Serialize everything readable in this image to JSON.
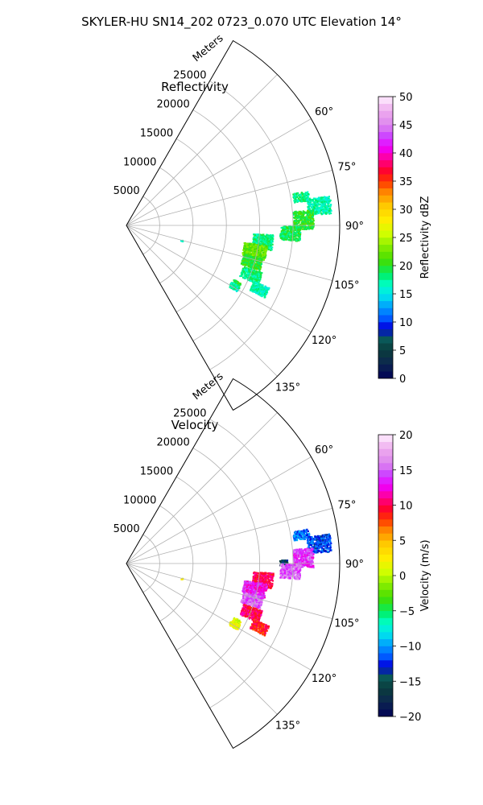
{
  "suptitle": "SKYLER-HU  SN14_202  0723_0.070 UTC Elevation 14°",
  "colors": {
    "grid": "#b0b0b0",
    "frame": "#000000"
  },
  "chart_data": [
    {
      "type": "heatmap",
      "projection": "polar-sector",
      "title": "Reflectivity",
      "range_label": "Meters",
      "theta_range_deg": [
        30,
        150
      ],
      "r_range_m": [
        0,
        32000
      ],
      "r_ticks": [
        5000,
        10000,
        15000,
        20000,
        25000
      ],
      "r_tick_labels": [
        "5000",
        "10000",
        "15000",
        "20000",
        "25000"
      ],
      "theta_ticks": [
        60,
        75,
        90,
        105,
        120,
        135
      ],
      "theta_tick_labels": [
        "60°",
        "75°",
        "90°",
        "105°",
        "120°",
        "135°"
      ],
      "grid": true,
      "colorbar": {
        "label": "Reflectivity dBZ",
        "vmin": 0,
        "vmax": 50,
        "ticks": [
          0,
          5,
          10,
          15,
          20,
          25,
          30,
          35,
          40,
          45,
          50
        ],
        "tick_labels": [
          "0",
          "5",
          "10",
          "15",
          "20",
          "25",
          "30",
          "35",
          "40",
          "45",
          "50"
        ]
      },
      "echoes": [
        {
          "theta": 80.5,
          "r": 26500,
          "dr": 2400,
          "dth": 3,
          "value": 18
        },
        {
          "theta": 84,
          "r": 29000,
          "dr": 3500,
          "dth": 5,
          "value": 17
        },
        {
          "theta": 88,
          "r": 26500,
          "dr": 3000,
          "dth": 6,
          "value": 20
        },
        {
          "theta": 92.5,
          "r": 24500,
          "dr": 3000,
          "dth": 5,
          "value": 19
        },
        {
          "theta": 96.5,
          "r": 20500,
          "dr": 3000,
          "dth": 6,
          "value": 18
        },
        {
          "theta": 101,
          "r": 19500,
          "dr": 3500,
          "dth": 6,
          "value": 22
        },
        {
          "theta": 106,
          "r": 19500,
          "dr": 3000,
          "dth": 5,
          "value": 20
        },
        {
          "theta": 111.5,
          "r": 20000,
          "dr": 3000,
          "dth": 5,
          "value": 18
        },
        {
          "theta": 115.5,
          "r": 22000,
          "dr": 2500,
          "dth": 4,
          "value": 17
        },
        {
          "theta": 117.5,
          "r": 18500,
          "dr": 1200,
          "dth": 2,
          "value": 20
        },
        {
          "theta": 119.5,
          "r": 18500,
          "dr": 1500,
          "dth": 2.5,
          "value": 17
        },
        {
          "theta": 105,
          "r": 8500,
          "dr": 300,
          "dth": 1,
          "value": 16
        }
      ]
    },
    {
      "type": "heatmap",
      "projection": "polar-sector",
      "title": "Velocity",
      "range_label": "Meters",
      "theta_range_deg": [
        30,
        150
      ],
      "r_range_m": [
        0,
        32000
      ],
      "r_ticks": [
        5000,
        10000,
        15000,
        20000,
        25000
      ],
      "r_tick_labels": [
        "5000",
        "10000",
        "15000",
        "20000",
        "25000"
      ],
      "theta_ticks": [
        60,
        75,
        90,
        105,
        120,
        135
      ],
      "theta_tick_labels": [
        "60°",
        "75°",
        "90°",
        "105°",
        "120°",
        "135°"
      ],
      "grid": true,
      "colorbar": {
        "label": "Velocity (m/s)",
        "vmin": -20,
        "vmax": 20,
        "ticks": [
          -20,
          -15,
          -10,
          -5,
          0,
          5,
          10,
          15,
          20
        ],
        "tick_labels": [
          "−20",
          "−15",
          "−10",
          "−5",
          "0",
          "5",
          "10",
          "15",
          "20"
        ]
      },
      "echoes": [
        {
          "theta": 80.5,
          "r": 26500,
          "dr": 2400,
          "dth": 3,
          "value": -11
        },
        {
          "theta": 84,
          "r": 29000,
          "dr": 3500,
          "dth": 5,
          "value": -12
        },
        {
          "theta": 88,
          "r": 26500,
          "dr": 3000,
          "dth": 6,
          "value": 14
        },
        {
          "theta": 89.5,
          "r": 23500,
          "dr": 1200,
          "dth": 2,
          "value": -15
        },
        {
          "theta": 92.5,
          "r": 24500,
          "dr": 3000,
          "dth": 5,
          "value": 15
        },
        {
          "theta": 96.5,
          "r": 20500,
          "dr": 3000,
          "dth": 6,
          "value": 10
        },
        {
          "theta": 101,
          "r": 19500,
          "dr": 3500,
          "dth": 6,
          "value": 13
        },
        {
          "theta": 106,
          "r": 19500,
          "dr": 3000,
          "dth": 5,
          "value": 15
        },
        {
          "theta": 111.5,
          "r": 20000,
          "dr": 3000,
          "dth": 5,
          "value": 10
        },
        {
          "theta": 115.5,
          "r": 22000,
          "dr": 2500,
          "dth": 4,
          "value": 9
        },
        {
          "theta": 117.5,
          "r": 18500,
          "dr": 1200,
          "dth": 2,
          "value": 1
        },
        {
          "theta": 119.5,
          "r": 18500,
          "dr": 1500,
          "dth": 2.5,
          "value": 2
        },
        {
          "theta": 105,
          "r": 8500,
          "dr": 300,
          "dth": 1,
          "value": 1
        }
      ]
    }
  ]
}
